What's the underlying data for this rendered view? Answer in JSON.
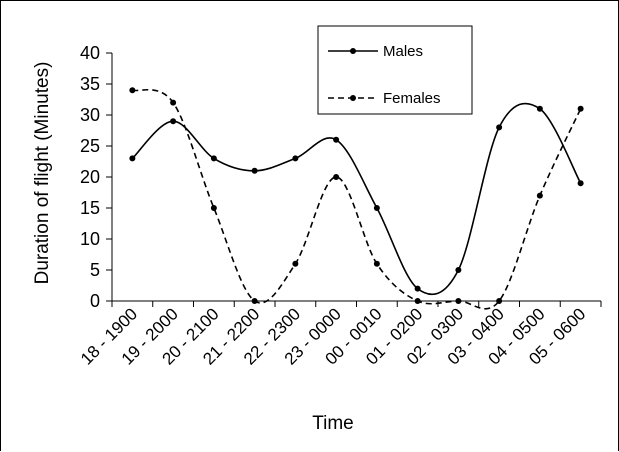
{
  "chart_data": {
    "type": "line",
    "xlabel": "Time",
    "ylabel": "Duration of flight (Minutes)",
    "categories": [
      "18 - 1900",
      "19 - 2000",
      "20 - 2100",
      "21 - 2200",
      "22 - 2300",
      "23 - 0000",
      "00 - 0010",
      "01 - 0200",
      "02 - 0300",
      "03 - 0400",
      "04 - 0500",
      "05 - 0600"
    ],
    "ylim": [
      0,
      40
    ],
    "yticks": [
      0,
      5,
      10,
      15,
      20,
      25,
      30,
      35,
      40
    ],
    "grid": false,
    "legend_position": "top-right",
    "series": [
      {
        "name": "Males",
        "line_style": "solid",
        "color": "#000000",
        "values": [
          23,
          29,
          23,
          21,
          23,
          26,
          15,
          2,
          5,
          28,
          31,
          19
        ]
      },
      {
        "name": "Females",
        "line_style": "dashed",
        "color": "#000000",
        "values": [
          34,
          32,
          15,
          0,
          6,
          20,
          6,
          0,
          0,
          0,
          17,
          31
        ]
      }
    ]
  }
}
